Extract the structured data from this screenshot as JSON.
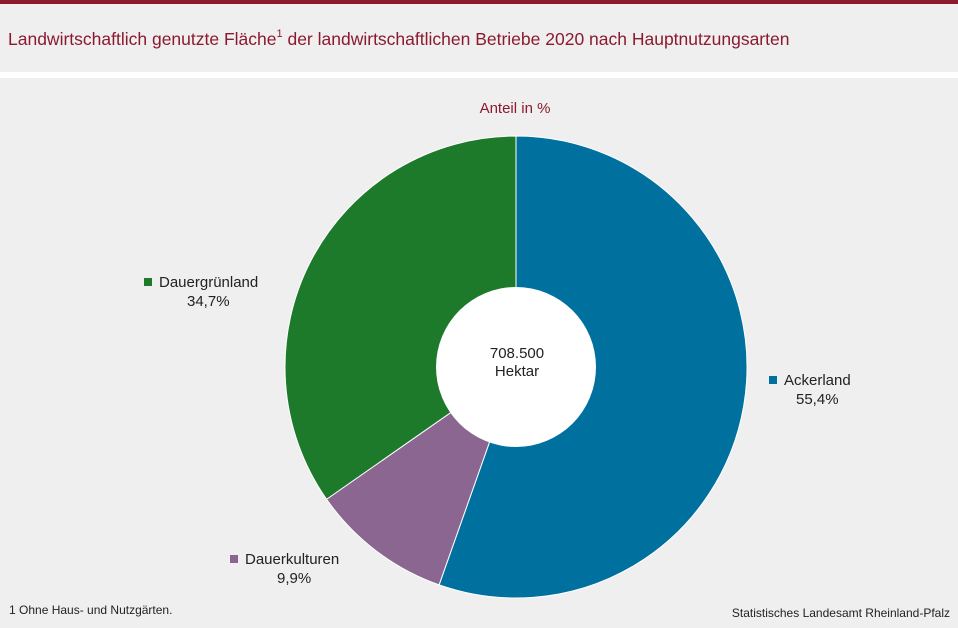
{
  "title": {
    "text": "Landwirtschaftlich genutzte Fläche",
    "sup": "1",
    "text_after": " der landwirtschaftlichen Betriebe 2020 nach Hauptnutzungsarten"
  },
  "footnote": "1 Ohne Haus- und Nutzgärten.",
  "source": "Statistisches Landesamt Rheinland-Pfalz",
  "colors": {
    "accent": "#8b1a2f",
    "background": "#efefef"
  },
  "chart_data": {
    "type": "pie",
    "variant": "donut",
    "subtitle": "Anteil in %",
    "center_label": [
      "708.500",
      "Hektar"
    ],
    "slices": [
      {
        "name": "Ackerland",
        "value": 55.4,
        "label": "55,4%",
        "color": "#00709f"
      },
      {
        "name": "Dauerkulturen",
        "value": 9.9,
        "label": "9,9%",
        "color": "#8a6691"
      },
      {
        "name": "Dauergrünland",
        "value": 34.7,
        "label": "34,7%",
        "color": "#1e7a2b"
      }
    ],
    "start_angle": "12 o'clock",
    "direction": "clockwise",
    "legend_placement": "next to slices"
  }
}
